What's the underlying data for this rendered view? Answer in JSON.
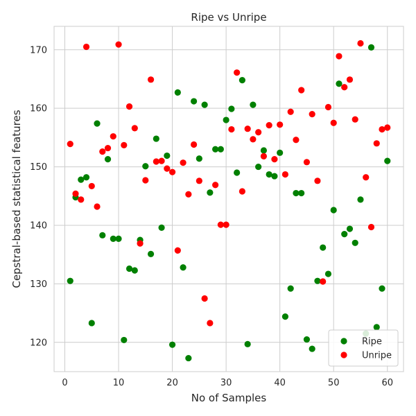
{
  "chart_data": {
    "type": "scatter",
    "title": "Ripe vs Unripe",
    "xlabel": "No of Samples",
    "ylabel": "Cepstral-based statistical features",
    "xlim": [
      -2,
      63
    ],
    "ylim": [
      115,
      174
    ],
    "xticks": [
      0,
      10,
      20,
      30,
      40,
      50,
      60
    ],
    "yticks": [
      120,
      130,
      140,
      150,
      160,
      170
    ],
    "grid": true,
    "legend_position": "lower-right",
    "series": [
      {
        "name": "Ripe",
        "color": "#008000",
        "x": [
          1,
          2,
          3,
          4,
          5,
          6,
          7,
          8,
          9,
          10,
          11,
          12,
          13,
          14,
          15,
          16,
          17,
          18,
          19,
          20,
          21,
          22,
          23,
          24,
          25,
          26,
          27,
          28,
          29,
          30,
          31,
          32,
          33,
          34,
          35,
          36,
          37,
          38,
          39,
          40,
          41,
          42,
          43,
          44,
          45,
          46,
          47,
          48,
          49,
          50,
          51,
          52,
          53,
          54,
          55,
          56,
          57,
          58,
          59,
          60
        ],
        "y": [
          130.5,
          144.8,
          147.8,
          148.2,
          123.3,
          157.4,
          138.3,
          151.3,
          137.7,
          137.7,
          120.4,
          132.6,
          132.3,
          137.5,
          150.1,
          135.1,
          154.8,
          139.6,
          151.9,
          119.6,
          162.7,
          132.8,
          117.3,
          161.2,
          151.4,
          160.6,
          145.6,
          153,
          153,
          158,
          159.9,
          149,
          164.8,
          119.7,
          160.6,
          150,
          152.8,
          148.7,
          148.4,
          152.4,
          124.4,
          129.2,
          145.5,
          145.5,
          120.5,
          118.9,
          130.5,
          136.2,
          131.7,
          142.6,
          164.2,
          138.5,
          139.4,
          137,
          144.4,
          121.5,
          170.4,
          122.6,
          129.2,
          151
        ]
      },
      {
        "name": "Unripe",
        "color": "#ff0000",
        "x": [
          1,
          2,
          3,
          4,
          5,
          6,
          7,
          8,
          9,
          10,
          11,
          12,
          13,
          14,
          15,
          16,
          17,
          18,
          19,
          20,
          21,
          22,
          23,
          24,
          25,
          26,
          27,
          28,
          29,
          30,
          31,
          32,
          33,
          34,
          35,
          36,
          37,
          38,
          39,
          40,
          41,
          42,
          43,
          44,
          45,
          46,
          47,
          48,
          49,
          50,
          51,
          52,
          53,
          54,
          55,
          56,
          57,
          58,
          59,
          60
        ],
        "y": [
          153.9,
          145.4,
          144.4,
          170.5,
          146.7,
          143.2,
          152.6,
          153.2,
          155.2,
          170.9,
          153.7,
          160.3,
          156.6,
          136.9,
          147.7,
          164.9,
          150.9,
          151,
          149.7,
          149.1,
          135.7,
          150.7,
          145.3,
          153.8,
          147.6,
          127.5,
          123.3,
          146.9,
          140.1,
          140.1,
          156.4,
          166.1,
          145.8,
          156.5,
          154.7,
          155.9,
          151.8,
          157.1,
          151.3,
          157.2,
          148.7,
          159.4,
          154.6,
          163.1,
          150.8,
          159,
          147.6,
          130.4,
          160.2,
          157.5,
          168.9,
          163.6,
          164.9,
          158.1,
          171.1,
          148.2,
          139.7,
          154,
          156.4,
          156.7
        ]
      }
    ]
  }
}
